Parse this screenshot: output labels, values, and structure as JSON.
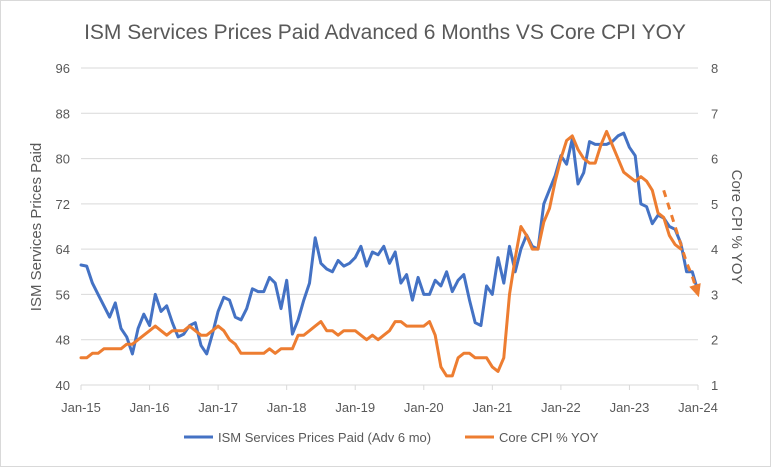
{
  "chart_data": {
    "type": "line",
    "title": "ISM Services Prices Paid Advanced 6 Months VS Core CPI YOY",
    "ylabel": "ISM Services Prices Paid",
    "y2label": "Core CPI % YOY",
    "ylim": [
      40,
      96
    ],
    "y2lim": [
      1,
      8
    ],
    "yticks": [
      "40",
      "48",
      "56",
      "64",
      "72",
      "80",
      "88",
      "96"
    ],
    "y2ticks": [
      "1",
      "2",
      "3",
      "4",
      "5",
      "6",
      "7",
      "8"
    ],
    "xticks": [
      "Jan-15",
      "Jan-16",
      "Jan-17",
      "Jan-18",
      "Jan-19",
      "Jan-20",
      "Jan-21",
      "Jan-22",
      "Jan-23",
      "Jan-24"
    ],
    "xlim": [
      "2015-01",
      "2024-01"
    ],
    "grid": "horizontal",
    "legend_position": "bottom",
    "colors": {
      "ism": "#4472c4",
      "cpi": "#ed7d31",
      "grid": "#d9d9d9",
      "text": "#595959"
    },
    "series": [
      {
        "name": "ISM Services Prices Paid (Adv 6 mo)",
        "axis": "left",
        "points": [
          [
            "2015-01",
            61.2
          ],
          [
            "2015-02",
            61.0
          ],
          [
            "2015-03",
            58.0
          ],
          [
            "2015-04",
            56.0
          ],
          [
            "2015-05",
            54.0
          ],
          [
            "2015-06",
            52.0
          ],
          [
            "2015-07",
            54.5
          ],
          [
            "2015-08",
            50.0
          ],
          [
            "2015-09",
            48.5
          ],
          [
            "2015-10",
            45.5
          ],
          [
            "2015-11",
            50.0
          ],
          [
            "2015-12",
            52.5
          ],
          [
            "2016-01",
            50.5
          ],
          [
            "2016-02",
            56.0
          ],
          [
            "2016-03",
            53.0
          ],
          [
            "2016-04",
            54.0
          ],
          [
            "2016-05",
            51.0
          ],
          [
            "2016-06",
            48.5
          ],
          [
            "2016-07",
            49.0
          ],
          [
            "2016-08",
            50.5
          ],
          [
            "2016-09",
            51.0
          ],
          [
            "2016-10",
            47.0
          ],
          [
            "2016-11",
            45.5
          ],
          [
            "2016-12",
            49.0
          ],
          [
            "2017-01",
            53.0
          ],
          [
            "2017-02",
            55.5
          ],
          [
            "2017-03",
            55.0
          ],
          [
            "2017-04",
            52.0
          ],
          [
            "2017-05",
            51.5
          ],
          [
            "2017-06",
            53.5
          ],
          [
            "2017-07",
            57.0
          ],
          [
            "2017-08",
            56.5
          ],
          [
            "2017-09",
            56.5
          ],
          [
            "2017-10",
            59.0
          ],
          [
            "2017-11",
            58.0
          ],
          [
            "2017-12",
            53.5
          ],
          [
            "2018-01",
            58.5
          ],
          [
            "2018-02",
            49.0
          ],
          [
            "2018-03",
            51.5
          ],
          [
            "2018-04",
            55.0
          ],
          [
            "2018-05",
            58.0
          ],
          [
            "2018-06",
            66.0
          ],
          [
            "2018-07",
            61.5
          ],
          [
            "2018-08",
            60.5
          ],
          [
            "2018-09",
            60.0
          ],
          [
            "2018-10",
            62.0
          ],
          [
            "2018-11",
            61.0
          ],
          [
            "2018-12",
            61.5
          ],
          [
            "2019-01",
            62.5
          ],
          [
            "2019-02",
            64.5
          ],
          [
            "2019-03",
            61.0
          ],
          [
            "2019-04",
            63.5
          ],
          [
            "2019-05",
            63.0
          ],
          [
            "2019-06",
            64.5
          ],
          [
            "2019-07",
            61.5
          ],
          [
            "2019-08",
            63.5
          ],
          [
            "2019-09",
            58.0
          ],
          [
            "2019-10",
            59.5
          ],
          [
            "2019-11",
            55.0
          ],
          [
            "2019-12",
            59.0
          ],
          [
            "2020-01",
            56.0
          ],
          [
            "2020-02",
            56.0
          ],
          [
            "2020-03",
            58.5
          ],
          [
            "2020-04",
            57.5
          ],
          [
            "2020-05",
            60.0
          ],
          [
            "2020-06",
            56.5
          ],
          [
            "2020-07",
            58.5
          ],
          [
            "2020-08",
            59.5
          ],
          [
            "2020-09",
            55.0
          ],
          [
            "2020-10",
            51.0
          ],
          [
            "2020-11",
            50.5
          ],
          [
            "2020-12",
            57.5
          ],
          [
            "2021-01",
            56.0
          ],
          [
            "2021-02",
            62.5
          ],
          [
            "2021-03",
            58.0
          ],
          [
            "2021-04",
            64.5
          ],
          [
            "2021-05",
            60.0
          ],
          [
            "2021-06",
            64.0
          ],
          [
            "2021-07",
            66.5
          ],
          [
            "2021-08",
            64.5
          ],
          [
            "2021-09",
            64.0
          ],
          [
            "2021-10",
            72.0
          ],
          [
            "2021-11",
            74.5
          ],
          [
            "2021-12",
            77.0
          ],
          [
            "2022-01",
            80.5
          ],
          [
            "2022-02",
            79.0
          ],
          [
            "2022-03",
            83.5
          ],
          [
            "2022-04",
            75.5
          ],
          [
            "2022-05",
            77.5
          ],
          [
            "2022-06",
            83.0
          ],
          [
            "2022-07",
            82.5
          ],
          [
            "2022-08",
            82.5
          ],
          [
            "2022-09",
            82.5
          ],
          [
            "2022-10",
            83.0
          ],
          [
            "2022-11",
            84.0
          ],
          [
            "2022-12",
            84.5
          ],
          [
            "2023-01",
            82.0
          ],
          [
            "2023-02",
            80.5
          ],
          [
            "2023-03",
            72.0
          ],
          [
            "2023-04",
            71.5
          ],
          [
            "2023-05",
            68.5
          ],
          [
            "2023-06",
            70.0
          ],
          [
            "2023-07",
            69.5
          ],
          [
            "2023-08",
            68.0
          ],
          [
            "2023-09",
            67.5
          ],
          [
            "2023-10",
            65.0
          ],
          [
            "2023-11",
            60.0
          ],
          [
            "2023-12",
            60.0
          ],
          [
            "2024-01",
            56.5
          ]
        ]
      },
      {
        "name": "Core CPI % YOY",
        "axis": "right",
        "points": [
          [
            "2015-01",
            1.6
          ],
          [
            "2015-02",
            1.6
          ],
          [
            "2015-03",
            1.7
          ],
          [
            "2015-04",
            1.7
          ],
          [
            "2015-05",
            1.8
          ],
          [
            "2015-06",
            1.8
          ],
          [
            "2015-07",
            1.8
          ],
          [
            "2015-08",
            1.8
          ],
          [
            "2015-09",
            1.9
          ],
          [
            "2015-10",
            1.9
          ],
          [
            "2015-11",
            2.0
          ],
          [
            "2015-12",
            2.1
          ],
          [
            "2016-01",
            2.2
          ],
          [
            "2016-02",
            2.3
          ],
          [
            "2016-03",
            2.2
          ],
          [
            "2016-04",
            2.1
          ],
          [
            "2016-05",
            2.2
          ],
          [
            "2016-06",
            2.2
          ],
          [
            "2016-07",
            2.2
          ],
          [
            "2016-08",
            2.3
          ],
          [
            "2016-09",
            2.2
          ],
          [
            "2016-10",
            2.1
          ],
          [
            "2016-11",
            2.1
          ],
          [
            "2016-12",
            2.2
          ],
          [
            "2017-01",
            2.3
          ],
          [
            "2017-02",
            2.2
          ],
          [
            "2017-03",
            2.0
          ],
          [
            "2017-04",
            1.9
          ],
          [
            "2017-05",
            1.7
          ],
          [
            "2017-06",
            1.7
          ],
          [
            "2017-07",
            1.7
          ],
          [
            "2017-08",
            1.7
          ],
          [
            "2017-09",
            1.7
          ],
          [
            "2017-10",
            1.8
          ],
          [
            "2017-11",
            1.7
          ],
          [
            "2017-12",
            1.8
          ],
          [
            "2018-01",
            1.8
          ],
          [
            "2018-02",
            1.8
          ],
          [
            "2018-03",
            2.1
          ],
          [
            "2018-04",
            2.1
          ],
          [
            "2018-05",
            2.2
          ],
          [
            "2018-06",
            2.3
          ],
          [
            "2018-07",
            2.4
          ],
          [
            "2018-08",
            2.2
          ],
          [
            "2018-09",
            2.2
          ],
          [
            "2018-10",
            2.1
          ],
          [
            "2018-11",
            2.2
          ],
          [
            "2018-12",
            2.2
          ],
          [
            "2019-01",
            2.2
          ],
          [
            "2019-02",
            2.1
          ],
          [
            "2019-03",
            2.0
          ],
          [
            "2019-04",
            2.1
          ],
          [
            "2019-05",
            2.0
          ],
          [
            "2019-06",
            2.1
          ],
          [
            "2019-07",
            2.2
          ],
          [
            "2019-08",
            2.4
          ],
          [
            "2019-09",
            2.4
          ],
          [
            "2019-10",
            2.3
          ],
          [
            "2019-11",
            2.3
          ],
          [
            "2019-12",
            2.3
          ],
          [
            "2020-01",
            2.3
          ],
          [
            "2020-02",
            2.4
          ],
          [
            "2020-03",
            2.1
          ],
          [
            "2020-04",
            1.4
          ],
          [
            "2020-05",
            1.2
          ],
          [
            "2020-06",
            1.2
          ],
          [
            "2020-07",
            1.6
          ],
          [
            "2020-08",
            1.7
          ],
          [
            "2020-09",
            1.7
          ],
          [
            "2020-10",
            1.6
          ],
          [
            "2020-11",
            1.6
          ],
          [
            "2020-12",
            1.6
          ],
          [
            "2021-01",
            1.4
          ],
          [
            "2021-02",
            1.3
          ],
          [
            "2021-03",
            1.6
          ],
          [
            "2021-04",
            3.0
          ],
          [
            "2021-05",
            3.8
          ],
          [
            "2021-06",
            4.5
          ],
          [
            "2021-07",
            4.3
          ],
          [
            "2021-08",
            4.0
          ],
          [
            "2021-09",
            4.0
          ],
          [
            "2021-10",
            4.6
          ],
          [
            "2021-11",
            4.9
          ],
          [
            "2021-12",
            5.5
          ],
          [
            "2022-01",
            6.0
          ],
          [
            "2022-02",
            6.4
          ],
          [
            "2022-03",
            6.5
          ],
          [
            "2022-04",
            6.2
          ],
          [
            "2022-05",
            6.0
          ],
          [
            "2022-06",
            5.9
          ],
          [
            "2022-07",
            5.9
          ],
          [
            "2022-08",
            6.3
          ],
          [
            "2022-09",
            6.6
          ],
          [
            "2022-10",
            6.3
          ],
          [
            "2022-11",
            6.0
          ],
          [
            "2022-12",
            5.7
          ],
          [
            "2023-01",
            5.6
          ],
          [
            "2023-02",
            5.5
          ],
          [
            "2023-03",
            5.6
          ],
          [
            "2023-04",
            5.5
          ],
          [
            "2023-05",
            5.3
          ],
          [
            "2023-06",
            4.8
          ],
          [
            "2023-07",
            4.7
          ],
          [
            "2023-08",
            4.3
          ],
          [
            "2023-09",
            4.1
          ],
          [
            "2023-10",
            4.0
          ]
        ]
      },
      {
        "name": "Core CPI % YOY",
        "axis": "right",
        "style": "dashed",
        "points": [
          [
            "2023-07",
            5.3
          ],
          [
            "2023-08",
            4.9
          ],
          [
            "2023-09",
            4.5
          ],
          [
            "2023-10",
            4.1
          ],
          [
            "2023-11",
            3.7
          ],
          [
            "2023-12",
            3.4
          ],
          [
            "2024-01",
            3.0
          ]
        ]
      }
    ],
    "legend": [
      {
        "label": "ISM Services Prices Paid (Adv 6 mo)",
        "color": "#4472c4"
      },
      {
        "label": "Core CPI % YOY",
        "color": "#ed7d31"
      }
    ]
  }
}
